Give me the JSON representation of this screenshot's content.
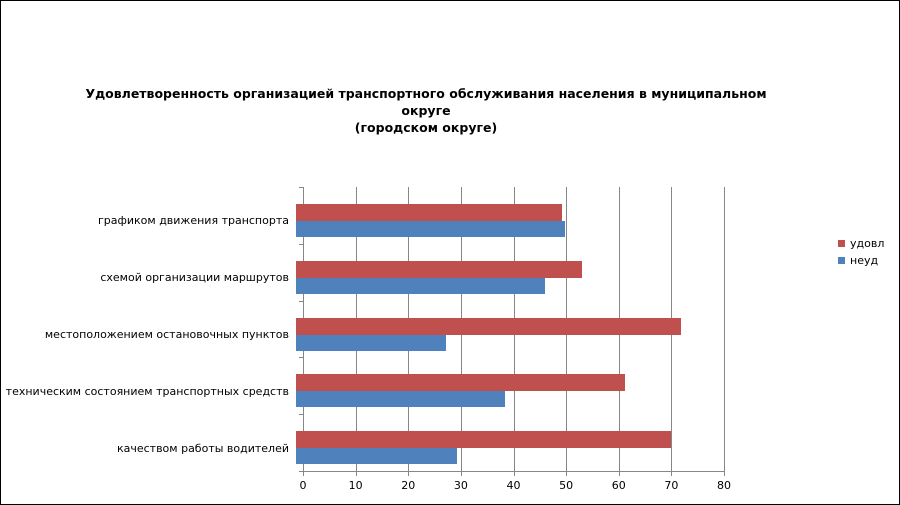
{
  "chart_data": {
    "type": "bar",
    "orientation": "horizontal",
    "title": "Удовлетворенность организацией транспортного обслуживания населения в муниципальном округе (городском округе)",
    "title_lines": [
      "Удовлетворенность организацией транспортного обслуживания населения в муниципальном округе",
      "(городском округе)"
    ],
    "categories": [
      "графиком движения транспорта",
      "схемой организации маршрутов",
      "местоположением остановочных пунктов",
      "техническим состоянием транспортных средств",
      "качеством работы водителей"
    ],
    "series": [
      {
        "name": "удовл",
        "color": "#C0504D",
        "values": [
          49.7,
          53.5,
          72,
          61.5,
          70
        ]
      },
      {
        "name": "неуд",
        "color": "#4F81BD",
        "values": [
          50.3,
          46.5,
          28,
          39,
          30
        ]
      }
    ],
    "xlabel": "",
    "ylabel": "",
    "xlim": [
      0,
      80
    ],
    "x_ticks": [
      0,
      10,
      20,
      30,
      40,
      50,
      60,
      70,
      80
    ],
    "grid": true,
    "legend_position": "right",
    "colors": {
      "grid": "#878787",
      "axis": "#878787",
      "text": "#000000",
      "background": "#FFFFFF"
    }
  }
}
